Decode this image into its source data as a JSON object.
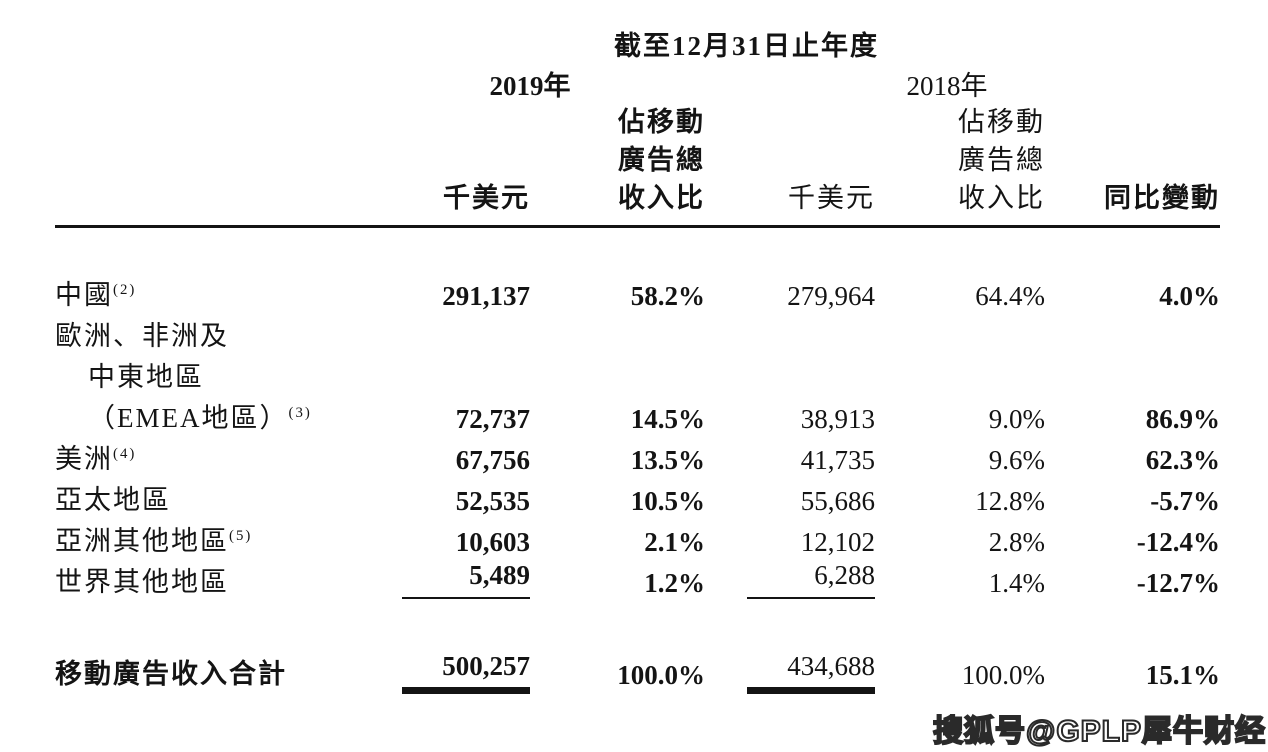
{
  "header": {
    "period_title": "截至12月31日止年度",
    "year_2019": "2019年",
    "year_2018": "2018年",
    "cols": {
      "usd_2019": "千美元",
      "share_2019": [
        "佔移動",
        "廣告總",
        "收入比"
      ],
      "usd_2018": "千美元",
      "share_2018": [
        "佔移動",
        "廣告總",
        "收入比"
      ],
      "yoy": "同比變動"
    }
  },
  "table": {
    "rows": [
      {
        "label": "中國",
        "sup": "(2)",
        "v19": "291,137",
        "p19": "58.2%",
        "v18": "279,964",
        "p18": "64.4%",
        "yoy": "4.0%"
      },
      {
        "label": "歐洲、非洲及",
        "sup": "",
        "v19": "",
        "p19": "",
        "v18": "",
        "p18": "",
        "yoy": ""
      },
      {
        "label": "中東地區",
        "sup": "",
        "v19": "",
        "p19": "",
        "v18": "",
        "p18": "",
        "yoy": ""
      },
      {
        "label": "（EMEA地區）",
        "sup": "(3)",
        "v19": "72,737",
        "p19": "14.5%",
        "v18": "38,913",
        "p18": "9.0%",
        "yoy": "86.9%"
      },
      {
        "label": "美洲",
        "sup": "(4)",
        "v19": "67,756",
        "p19": "13.5%",
        "v18": "41,735",
        "p18": "9.6%",
        "yoy": "62.3%"
      },
      {
        "label": "亞太地區",
        "sup": "",
        "v19": "52,535",
        "p19": "10.5%",
        "v18": "55,686",
        "p18": "12.8%",
        "yoy": "-5.7%"
      },
      {
        "label": "亞洲其他地區",
        "sup": "(5)",
        "v19": "10,603",
        "p19": "2.1%",
        "v18": "12,102",
        "p18": "2.8%",
        "yoy": "-12.4%"
      },
      {
        "label": "世界其他地區",
        "sup": "",
        "v19": "5,489",
        "p19": "1.2%",
        "v18": "6,288",
        "p18": "1.4%",
        "yoy": "-12.7%"
      }
    ],
    "total": {
      "label": "移動廣告收入合計",
      "v19": "500,257",
      "p19": "100.0%",
      "v18": "434,688",
      "p18": "100.0%",
      "yoy": "15.1%"
    }
  },
  "watermark": "搜狐号@GPLP犀牛财经"
}
